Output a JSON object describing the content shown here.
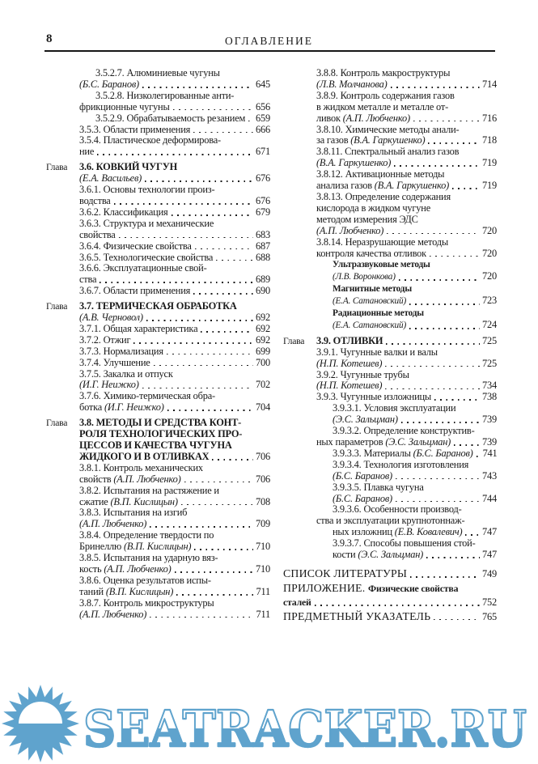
{
  "page": {
    "number": "8",
    "header_title": "ОГЛАВЛЕНИЕ"
  },
  "watermark": {
    "text": "SEATRACKER.RU",
    "color": "#5fa3cd",
    "logo": "sun-icon"
  },
  "toc": {
    "columns": [
      {
        "side": "left",
        "lines": [
          {
            "ind": 2,
            "seg": [
              [
                "n",
                "3.5.2.7. Алюминиевые чугуны"
              ]
            ]
          },
          {
            "ind": 1,
            "seg": [
              [
                "i",
                "(Б.С. Баранов)"
              ]
            ],
            "page": "645"
          },
          {
            "ind": 2,
            "seg": [
              [
                "n",
                "3.5.2.8. Низколегированные анти-"
              ]
            ]
          },
          {
            "ind": 1,
            "seg": [
              [
                "n",
                "фрикционные чугуны"
              ]
            ],
            "page": "656"
          },
          {
            "ind": 2,
            "seg": [
              [
                "n",
                "3.5.2.9. Обрабатываемость резанием"
              ]
            ],
            "page": "659"
          },
          {
            "ind": 1,
            "seg": [
              [
                "n",
                "3.5.3. Области применения"
              ]
            ],
            "page": "666"
          },
          {
            "ind": 1,
            "seg": [
              [
                "n",
                "3.5.4. Пластическое деформирова-"
              ]
            ]
          },
          {
            "ind": 1,
            "seg": [
              [
                "n",
                "ние"
              ]
            ],
            "page": "671"
          },
          {
            "ind": 1,
            "gap": "1",
            "label": "Глава",
            "seg": [
              [
                "b",
                "3.6. КОВКИЙ ЧУГУН"
              ]
            ]
          },
          {
            "ind": 1,
            "seg": [
              [
                "i",
                "(Е.А. Васильев)"
              ]
            ],
            "page": "676"
          },
          {
            "ind": 1,
            "seg": [
              [
                "n",
                "3.6.1. Основы технологии произ-"
              ]
            ]
          },
          {
            "ind": 1,
            "seg": [
              [
                "n",
                "водства"
              ]
            ],
            "page": "676"
          },
          {
            "ind": 1,
            "seg": [
              [
                "n",
                "3.6.2. Классификация"
              ]
            ],
            "page": "679"
          },
          {
            "ind": 1,
            "seg": [
              [
                "n",
                "3.6.3. Структура и механические"
              ]
            ]
          },
          {
            "ind": 1,
            "seg": [
              [
                "n",
                "свойства"
              ]
            ],
            "page": "683"
          },
          {
            "ind": 1,
            "seg": [
              [
                "n",
                "3.6.4. Физические свойства"
              ]
            ],
            "page": "687"
          },
          {
            "ind": 1,
            "seg": [
              [
                "n",
                "3.6.5. Технологические свойства"
              ]
            ],
            "page": "688"
          },
          {
            "ind": 1,
            "seg": [
              [
                "n",
                "3.6.6. Эксплуатационные свой-"
              ]
            ]
          },
          {
            "ind": 1,
            "seg": [
              [
                "n",
                "ства"
              ]
            ],
            "page": "689"
          },
          {
            "ind": 1,
            "seg": [
              [
                "n",
                "3.6.7. Области применения"
              ]
            ],
            "page": "690"
          },
          {
            "ind": 1,
            "gap": "1",
            "label": "Глава",
            "seg": [
              [
                "b",
                "3.7. ТЕРМИЧЕСКАЯ ОБРАБОТКА"
              ]
            ]
          },
          {
            "ind": 1,
            "seg": [
              [
                "i",
                "(А.В. Черновол)"
              ]
            ],
            "page": "692"
          },
          {
            "ind": 1,
            "seg": [
              [
                "n",
                "3.7.1. Общая характеристика"
              ]
            ],
            "page": "692"
          },
          {
            "ind": 1,
            "seg": [
              [
                "n",
                "3.7.2. Отжиг"
              ]
            ],
            "page": "692"
          },
          {
            "ind": 1,
            "seg": [
              [
                "n",
                "3.7.3. Нормализация"
              ]
            ],
            "page": "699"
          },
          {
            "ind": 1,
            "seg": [
              [
                "n",
                "3.7.4. Улучшение"
              ]
            ],
            "page": "700"
          },
          {
            "ind": 1,
            "seg": [
              [
                "n",
                "3.7.5. Закалка и отпуск"
              ]
            ]
          },
          {
            "ind": 1,
            "seg": [
              [
                "i",
                "(И.Г. Неижко)"
              ]
            ],
            "page": "702"
          },
          {
            "ind": 1,
            "seg": [
              [
                "n",
                "3.7.6. Химико-термическая обра-"
              ]
            ]
          },
          {
            "ind": 1,
            "seg": [
              [
                "n",
                "ботка "
              ],
              [
                "i",
                "(И.Г. Неижко)"
              ]
            ],
            "page": "704"
          },
          {
            "ind": 1,
            "gap": "1",
            "label": "Глава",
            "seg": [
              [
                "b",
                "3.8. МЕТОДЫ И СРЕДСТВА КОНТ-"
              ]
            ]
          },
          {
            "ind": 1,
            "seg": [
              [
                "b",
                "РОЛЯ ТЕХНОЛОГИЧЕСКИХ ПРО-"
              ]
            ]
          },
          {
            "ind": 1,
            "seg": [
              [
                "b",
                "ЦЕССОВ И КАЧЕСТВА ЧУГУНА"
              ]
            ]
          },
          {
            "ind": 1,
            "seg": [
              [
                "b",
                "ЖИДКОГО И В ОТЛИВКАХ"
              ]
            ],
            "page": "706"
          },
          {
            "ind": 1,
            "seg": [
              [
                "n",
                "3.8.1. Контроль механических"
              ]
            ]
          },
          {
            "ind": 1,
            "seg": [
              [
                "n",
                "свойств "
              ],
              [
                "i",
                "(А.П. Любченко)"
              ]
            ],
            "page": "706"
          },
          {
            "ind": 1,
            "seg": [
              [
                "n",
                "3.8.2. Испытания на растяжение и"
              ]
            ]
          },
          {
            "ind": 1,
            "seg": [
              [
                "n",
                "сжатие "
              ],
              [
                "i",
                "(В.П. Кислицын)"
              ]
            ],
            "page": "708"
          },
          {
            "ind": 1,
            "seg": [
              [
                "n",
                "3.8.3. Испытания на изгиб"
              ]
            ]
          },
          {
            "ind": 1,
            "seg": [
              [
                "i",
                "(А.П. Любченко)"
              ]
            ],
            "page": "709"
          },
          {
            "ind": 1,
            "seg": [
              [
                "n",
                "3.8.4. Определение твердости по"
              ]
            ]
          },
          {
            "ind": 1,
            "seg": [
              [
                "n",
                "Бринеллю "
              ],
              [
                "i",
                "(В.П. Кислицын)"
              ]
            ],
            "page": "710"
          },
          {
            "ind": 1,
            "seg": [
              [
                "n",
                "3.8.5. Испытания на ударную вяз-"
              ]
            ]
          },
          {
            "ind": 1,
            "seg": [
              [
                "n",
                "кость "
              ],
              [
                "i",
                "(А.П. Любченко)"
              ]
            ],
            "page": "710"
          },
          {
            "ind": 1,
            "seg": [
              [
                "n",
                "3.8.6. Оценка результатов испы-"
              ]
            ]
          },
          {
            "ind": 1,
            "seg": [
              [
                "n",
                "таний "
              ],
              [
                "i",
                "(В.П. Кислицын)"
              ]
            ],
            "page": "711"
          },
          {
            "ind": 1,
            "seg": [
              [
                "n",
                "3.8.7. Контроль микроструктуры"
              ]
            ]
          },
          {
            "ind": 1,
            "seg": [
              [
                "i",
                "(А.П. Любченко)"
              ]
            ],
            "page": "711"
          }
        ]
      },
      {
        "side": "right",
        "lines": [
          {
            "ind": 1,
            "seg": [
              [
                "n",
                "3.8.8. Контроль макроструктуры"
              ]
            ]
          },
          {
            "ind": 1,
            "seg": [
              [
                "i",
                "(Л.В. Молчанова)"
              ]
            ],
            "page": "714"
          },
          {
            "ind": 1,
            "seg": [
              [
                "n",
                "3.8.9. Контроль содержания газов"
              ]
            ]
          },
          {
            "ind": 1,
            "seg": [
              [
                "n",
                "в жидком металле и металле от-"
              ]
            ]
          },
          {
            "ind": 1,
            "seg": [
              [
                "n",
                "ливок "
              ],
              [
                "i",
                "(А.П. Любченко)"
              ]
            ],
            "page": "716"
          },
          {
            "ind": 1,
            "seg": [
              [
                "n",
                "3.8.10. Химические методы анали-"
              ]
            ]
          },
          {
            "ind": 1,
            "seg": [
              [
                "n",
                "за газов "
              ],
              [
                "i",
                "(В.А. Гаркушенко)"
              ]
            ],
            "page": "718"
          },
          {
            "ind": 1,
            "seg": [
              [
                "n",
                "3.8.11. Спектральный анализ газов"
              ]
            ]
          },
          {
            "ind": 1,
            "seg": [
              [
                "i",
                "(В.А. Гаркушенко)"
              ]
            ],
            "page": "719"
          },
          {
            "ind": 1,
            "seg": [
              [
                "n",
                "3.8.12. Активационные методы"
              ]
            ]
          },
          {
            "ind": 1,
            "seg": [
              [
                "n",
                "анализа газов "
              ],
              [
                "i",
                "(В.А. Гаркушенко)"
              ]
            ],
            "page": "719"
          },
          {
            "ind": 1,
            "seg": [
              [
                "n",
                "3.8.13. Определение содержания"
              ]
            ]
          },
          {
            "ind": 1,
            "seg": [
              [
                "n",
                "кислорода в жидком чугуне"
              ]
            ]
          },
          {
            "ind": 1,
            "seg": [
              [
                "n",
                "методом измерения ЭДС"
              ]
            ]
          },
          {
            "ind": 1,
            "seg": [
              [
                "i",
                "(А.П. Любченко)"
              ]
            ],
            "page": "720"
          },
          {
            "ind": 1,
            "seg": [
              [
                "n",
                "3.8.14. Неразрушающие методы"
              ]
            ]
          },
          {
            "ind": 1,
            "seg": [
              [
                "n",
                "контроля качества отливок"
              ]
            ],
            "page": "720"
          },
          {
            "ind": 2,
            "seg": [
              [
                "sb",
                "Ультразвуковые методы"
              ]
            ]
          },
          {
            "ind": 2,
            "seg": [
              [
                "si",
                "(Л.В. Воронкова)"
              ]
            ],
            "page": "720"
          },
          {
            "ind": 2,
            "seg": [
              [
                "sb",
                "Магнитные методы"
              ]
            ]
          },
          {
            "ind": 2,
            "seg": [
              [
                "si",
                "(Е.А. Сатановский)"
              ]
            ],
            "page": "723"
          },
          {
            "ind": 2,
            "seg": [
              [
                "sb",
                "Радиационные методы"
              ]
            ]
          },
          {
            "ind": 2,
            "seg": [
              [
                "si",
                "(Е.А. Сатановский)"
              ]
            ],
            "page": "724"
          },
          {
            "ind": 1,
            "gap": "1",
            "label": "Глава",
            "seg": [
              [
                "b",
                "3.9. ОТЛИВКИ"
              ]
            ],
            "page": "725"
          },
          {
            "ind": 1,
            "seg": [
              [
                "n",
                "3.9.1. Чугунные валки и валы"
              ]
            ]
          },
          {
            "ind": 1,
            "seg": [
              [
                "i",
                "(Н.П. Котешев)"
              ]
            ],
            "page": "725"
          },
          {
            "ind": 1,
            "seg": [
              [
                "n",
                "3.9.2. Чугунные трубы"
              ]
            ]
          },
          {
            "ind": 1,
            "seg": [
              [
                "i",
                "(Н.П. Котешев)"
              ]
            ],
            "page": "734"
          },
          {
            "ind": 1,
            "seg": [
              [
                "n",
                "3.9.3. Чугунные изложницы"
              ]
            ],
            "page": "738"
          },
          {
            "ind": 2,
            "seg": [
              [
                "n",
                "3.9.3.1. Условия эксплуатации"
              ]
            ]
          },
          {
            "ind": 2,
            "seg": [
              [
                "i",
                "(Э.С. Зальцман)"
              ]
            ],
            "page": "739"
          },
          {
            "ind": 2,
            "seg": [
              [
                "n",
                "3.9.3.2. Определение конструктив-"
              ]
            ]
          },
          {
            "ind": 1,
            "seg": [
              [
                "n",
                "ных параметров "
              ],
              [
                "i",
                "(Э.С. Зальцман)"
              ]
            ],
            "page": "739"
          },
          {
            "ind": 2,
            "seg": [
              [
                "n",
                "3.9.3.3. Материалы "
              ],
              [
                "i",
                "(Б.С. Баранов)"
              ]
            ],
            "page": "741"
          },
          {
            "ind": 2,
            "seg": [
              [
                "n",
                "3.9.3.4. Технология изготовления"
              ]
            ]
          },
          {
            "ind": 2,
            "seg": [
              [
                "i",
                "(Б.С. Баранов)"
              ]
            ],
            "page": "743"
          },
          {
            "ind": 2,
            "seg": [
              [
                "n",
                "3.9.3.5. Плавка чугуна"
              ]
            ]
          },
          {
            "ind": 2,
            "seg": [
              [
                "i",
                "(Б.С. Баранов)"
              ]
            ],
            "page": "744"
          },
          {
            "ind": 2,
            "seg": [
              [
                "n",
                "3.9.3.6. Особенности производ-"
              ]
            ]
          },
          {
            "ind": 1,
            "seg": [
              [
                "n",
                "ства и эксплуатации крупнотоннаж-"
              ]
            ]
          },
          {
            "ind": 2,
            "seg": [
              [
                "n",
                "ных изложниц "
              ],
              [
                "i",
                "(Е.В. Ковалевич)"
              ]
            ],
            "page": "747"
          },
          {
            "ind": 2,
            "seg": [
              [
                "n",
                "3.9.3.7. Способы повышения стой-"
              ]
            ]
          },
          {
            "ind": 2,
            "seg": [
              [
                "n",
                "кости "
              ],
              [
                "i",
                "(Э.С. Зальцман)"
              ]
            ],
            "page": "747"
          },
          {
            "ind": 0,
            "gap": "2",
            "seg": [
              [
                "c",
                "СПИСОК ЛИТЕРАТУРЫ"
              ]
            ],
            "page": "749"
          },
          {
            "ind": 0,
            "seg": [
              [
                "c",
                "ПРИЛОЖЕНИЕ. "
              ],
              [
                "bs",
                "Физические свойства"
              ]
            ]
          },
          {
            "ind": 0,
            "seg": [
              [
                "bs",
                "сталей"
              ]
            ],
            "page": "752"
          },
          {
            "ind": 0,
            "seg": [
              [
                "c",
                "ПРЕДМЕТНЫЙ УКАЗАТЕЛЬ"
              ]
            ],
            "page": "765"
          }
        ]
      }
    ]
  }
}
